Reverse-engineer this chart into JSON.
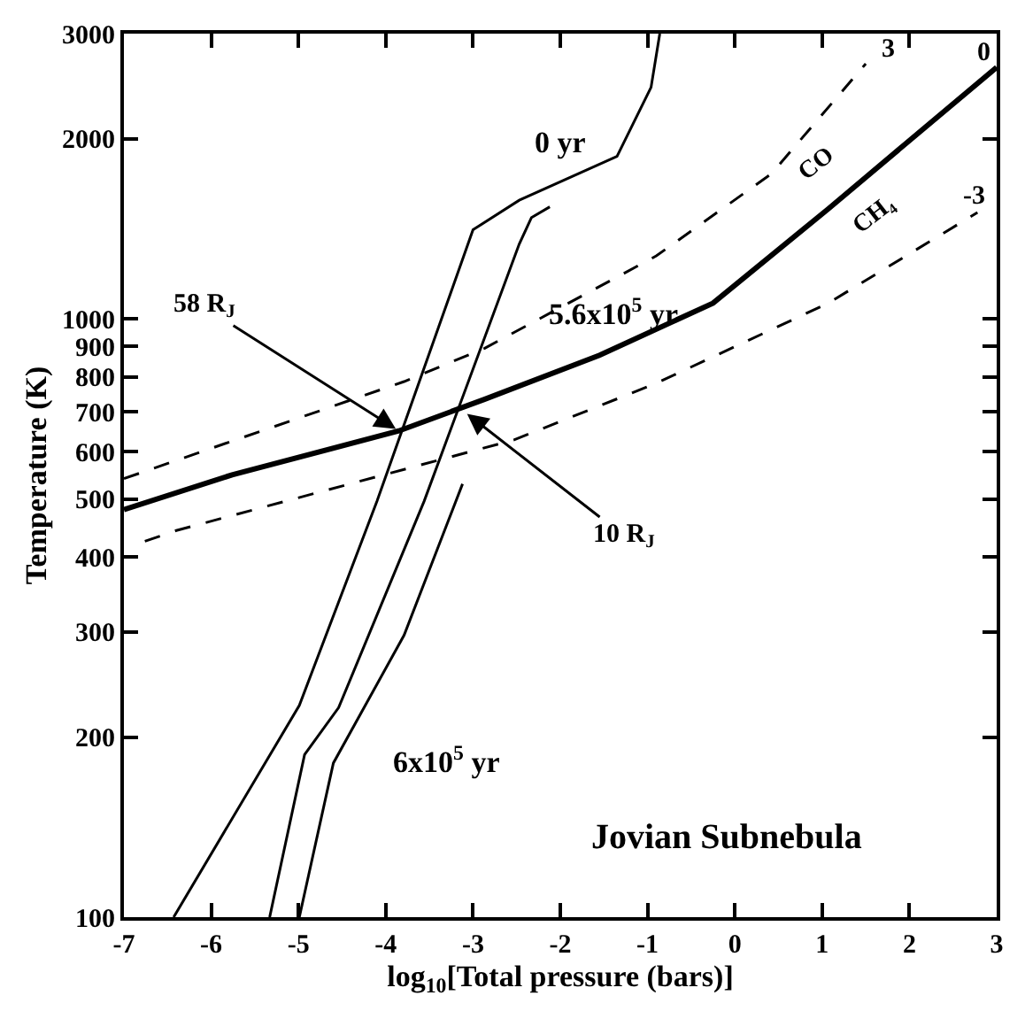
{
  "chart_data": {
    "type": "line",
    "xlabel": "log$_{10}$[Total pressure (bars)]",
    "ylabel": "Temperature (K)",
    "xlim": [
      -7,
      3
    ],
    "xticks": [
      -7,
      -6,
      -5,
      -4,
      -3,
      -2,
      -1,
      0,
      1,
      2,
      3
    ],
    "ylim": [
      100,
      3000
    ],
    "yticks": [
      100,
      200,
      300,
      400,
      500,
      600,
      700,
      800,
      900,
      1000,
      2000,
      3000
    ],
    "log": "y",
    "marker": "none",
    "series": [
      {
        "color": "#000000",
        "line_style": "dashed",
        "x": [
          -7,
          -3.79,
          -2.87,
          -0.9,
          0.42,
          1.5
        ],
        "values": [
          541,
          786,
          893,
          1275,
          1750,
          2672
        ]
      },
      {
        "color": "#000000",
        "line_style": "solid",
        "x": [
          -7,
          -5.76,
          -3.85,
          -2.87,
          -1.55,
          -0.25,
          1.07,
          3
        ],
        "values": [
          480,
          549,
          650,
          734,
          870,
          1063,
          1528,
          2636
        ]
      },
      {
        "color": "#000000",
        "line_style": "dashed",
        "x": [
          -6.76,
          -6.4,
          -2.53,
          -0.9,
          1.07,
          2.78
        ],
        "values": [
          425,
          443,
          628,
          781,
          1063,
          1507
        ]
      },
      {
        "color": "#000000",
        "line_style": "solid",
        "x": [
          -6.43,
          -4.99,
          -4.1,
          -3.0,
          -2.47,
          -1.35,
          -0.96,
          -0.86
        ],
        "values": [
          100,
          226,
          496,
          1410,
          1580,
          1870,
          2440,
          3000
        ]
      },
      {
        "color": "#000000",
        "line_style": "solid",
        "x": [
          -5.33,
          -4.93,
          -4.54,
          -3.56,
          -2.47,
          -2.33,
          -2.12
        ],
        "values": [
          100,
          187,
          224,
          496,
          1335,
          1478,
          1540
        ]
      },
      {
        "color": "#000000",
        "line_style": "solid",
        "x": [
          -4.99,
          -4.6,
          -3.79,
          -3.12
        ],
        "values": [
          100,
          181,
          296,
          530
        ]
      }
    ],
    "annotations": [
      "0 yr",
      "5.6x10$^{5}$ yr",
      "6x10$^{5}$ yr",
      {
        "text": "58 R$_{J}$",
        "x": -3.85,
        "y": 650
      },
      {
        "text": "10 R$_{J}$",
        "x": -3.1,
        "y": 700
      },
      "CO",
      "CH₄",
      "3",
      "0",
      "-3",
      "Jovian Subnebula"
    ]
  }
}
